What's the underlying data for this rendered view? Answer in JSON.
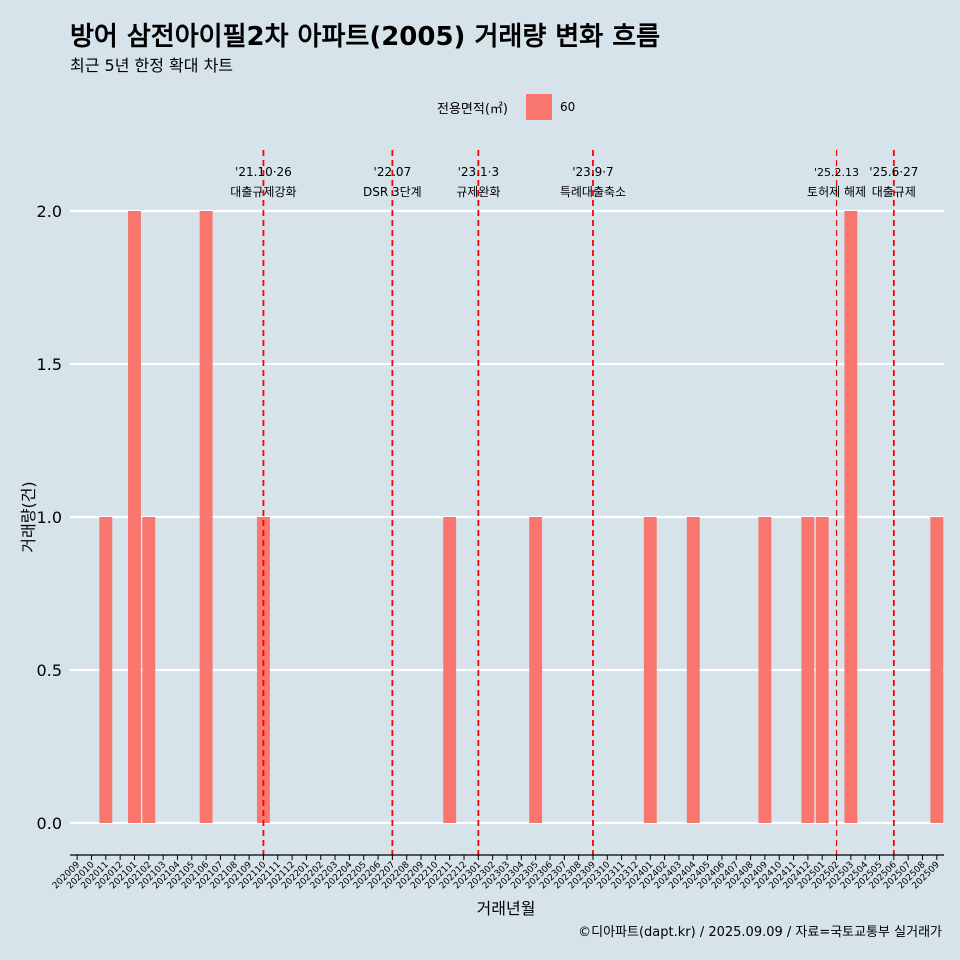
{
  "header": {
    "title": "방어 삼전아이필2차 아파트(2005) 거래량 변화 흐름",
    "subtitle": "최근 5년 한정 확대 차트"
  },
  "legend": {
    "title": "전용면적(㎡)",
    "items": [
      {
        "label": "60",
        "color": "#f8766d"
      }
    ]
  },
  "caption": "©디아파트(dapt.kr) / 2025.09.09 / 자료=국토교통부 실거래가",
  "chart_data": {
    "type": "bar",
    "xlabel": "거래년월",
    "ylabel": "거래량(건)",
    "ylim": [
      0,
      2
    ],
    "yticks": [
      "0.0",
      "0.5",
      "1.0",
      "1.5",
      "2.0"
    ],
    "grid": true,
    "legend_position": "top",
    "bar_color": "#f8766d",
    "categories": [
      "202009",
      "202010",
      "202011",
      "202012",
      "202101",
      "202102",
      "202103",
      "202104",
      "202105",
      "202106",
      "202107",
      "202108",
      "202109",
      "202110",
      "202111",
      "202112",
      "202201",
      "202202",
      "202203",
      "202204",
      "202205",
      "202206",
      "202207",
      "202208",
      "202209",
      "202210",
      "202211",
      "202212",
      "202301",
      "202302",
      "202303",
      "202304",
      "202305",
      "202306",
      "202307",
      "202308",
      "202309",
      "202310",
      "202311",
      "202312",
      "202401",
      "202402",
      "202403",
      "202404",
      "202405",
      "202406",
      "202407",
      "202408",
      "202409",
      "202410",
      "202411",
      "202412",
      "202501",
      "202502",
      "202503",
      "202504",
      "202505",
      "202506",
      "202507",
      "202508",
      "202509"
    ],
    "series": [
      {
        "values": [
          0,
          0,
          1,
          0,
          2,
          1,
          0,
          0,
          0,
          2,
          0,
          0,
          0,
          1,
          0,
          0,
          0,
          0,
          0,
          0,
          0,
          0,
          0,
          0,
          0,
          0,
          1,
          0,
          0,
          0,
          0,
          0,
          1,
          0,
          0,
          0,
          0,
          0,
          0,
          0,
          1,
          0,
          0,
          1,
          0,
          0,
          0,
          0,
          1,
          0,
          0,
          1,
          1,
          0,
          2,
          0,
          0,
          0,
          0,
          0,
          1
        ]
      }
    ],
    "annotations": [
      {
        "date": "'21.10·26",
        "label": "대출규제강화",
        "at": "202110"
      },
      {
        "date": "'22.07",
        "label": "DSR 3단계",
        "at": "202207"
      },
      {
        "date": "'23.1·3",
        "label": "규제완화",
        "at": "202301"
      },
      {
        "date": "'23.9·7",
        "label": "특례대출축소",
        "at": "202309"
      },
      {
        "date": "'25.2.13",
        "label": "토허제 해제",
        "at": "202502"
      },
      {
        "date": "'25.6·27",
        "label": "대출규제",
        "at": "202506"
      }
    ]
  }
}
